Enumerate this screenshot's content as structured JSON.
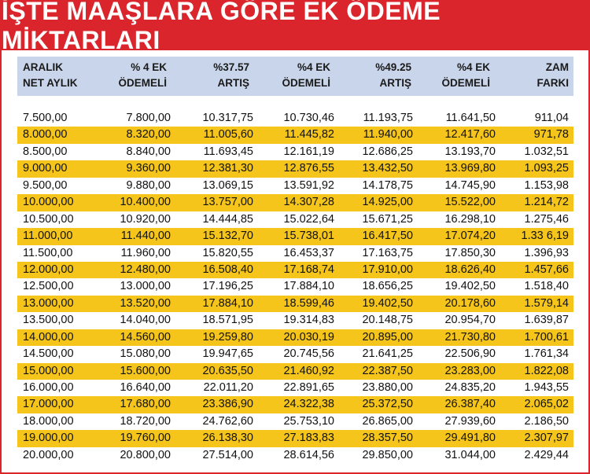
{
  "title": "İŞTE MAAŞLARA GÖRE EK ÖDEME MİKTARLARI",
  "colors": {
    "banner": "#d9252b",
    "header": "#c9d5ea",
    "highlight": "#f6c51b"
  },
  "headers": [
    [
      "ARALIK",
      "NET AYLIK"
    ],
    [
      "% 4 EK",
      "ÖDEMELİ"
    ],
    [
      "%37.57",
      "ARTIŞ"
    ],
    [
      "%4 EK",
      "ÖDEMELİ"
    ],
    [
      "%49.25",
      "ARTIŞ"
    ],
    [
      "%4 EK",
      "ÖDEMELİ"
    ],
    [
      "ZAM",
      "FARKI"
    ]
  ],
  "rows": [
    [
      "7.500,00",
      "7.800,00",
      "10.317,75",
      "10.730,46",
      "11.193,75",
      "11.641,50",
      "911,04"
    ],
    [
      "8.000,00",
      "8.320,00",
      "11.005,60",
      "11.445,82",
      "11.940,00",
      "12.417,60",
      "971,78"
    ],
    [
      "8.500,00",
      "8.840,00",
      "11.693,45",
      "12.161,19",
      "12.686,25",
      "13.193,70",
      "1.032,51"
    ],
    [
      "9.000,00",
      "9.360,00",
      "12.381,30",
      "12.876,55",
      "13.432,50",
      "13.969,80",
      "1.093,25"
    ],
    [
      "9.500,00",
      "9.880,00",
      "13.069,15",
      "13.591,92",
      "14.178,75",
      "14.745,90",
      "1.153,98"
    ],
    [
      "10.000,00",
      "10.400,00",
      "13.757,00",
      "14.307,28",
      "14.925,00",
      "15.522,00",
      "1.214,72"
    ],
    [
      "10.500,00",
      "10.920,00",
      "14.444,85",
      "15.022,64",
      "15.671,25",
      "16.298,10",
      "1.275,46"
    ],
    [
      "11.000,00",
      "11.440,00",
      "15.132,70",
      "15.738,01",
      "16.417,50",
      "17.074,20",
      "1.33 6,19"
    ],
    [
      "11.500,00",
      "11.960,00",
      "15.820,55",
      "16.453,37",
      "17.163,75",
      "17.850,30",
      "1.396,93"
    ],
    [
      "12.000,00",
      "12.480,00",
      "16.508,40",
      "17.168,74",
      "17.910,00",
      "18.626,40",
      "1.457,66"
    ],
    [
      "12.500,00",
      "13.000,00",
      "17.196,25",
      "17.884,10",
      "18.656,25",
      "19.402,50",
      "1.518,40"
    ],
    [
      "13.000,00",
      "13.520,00",
      "17.884,10",
      "18.599,46",
      "19.402,50",
      "20.178,60",
      "1.579,14"
    ],
    [
      "13.500,00",
      "14.040,00",
      "18.571,95",
      "19.314,83",
      "20.148,75",
      "20.954,70",
      "1.639,87"
    ],
    [
      "14.000,00",
      "14.560,00",
      "19.259,80",
      "20.030,19",
      "20.895,00",
      "21.730,80",
      "1.700,61"
    ],
    [
      "14.500,00",
      "15.080,00",
      "19.947,65",
      "20.745,56",
      "21.641,25",
      "22.506,90",
      "1.761,34"
    ],
    [
      "15.000,00",
      "15.600,00",
      "20.635,50",
      "21.460,92",
      "22.387,50",
      "23.283,00",
      "1.822,08"
    ],
    [
      "16.000,00",
      "16.640,00",
      "22.011,20",
      "22.891,65",
      "23.880,00",
      "24.835,20",
      "1.943,55"
    ],
    [
      "17.000,00",
      "17.680,00",
      "23.386,90",
      "24.322,38",
      "25.372,50",
      "26.387,40",
      "2.065,02"
    ],
    [
      "18.000,00",
      "18.720,00",
      "24.762,60",
      "25.753,10",
      "26.865,00",
      "27.939,60",
      "2.186,50"
    ],
    [
      "19.000,00",
      "19.760,00",
      "26.138,30",
      "27.183,83",
      "28.357,50",
      "29.491,80",
      "2.307,97"
    ],
    [
      "20.000,00",
      "20.800,00",
      "27.514,00",
      "28.614,56",
      "29.850,00",
      "31.044,00",
      "2.429,44"
    ]
  ]
}
